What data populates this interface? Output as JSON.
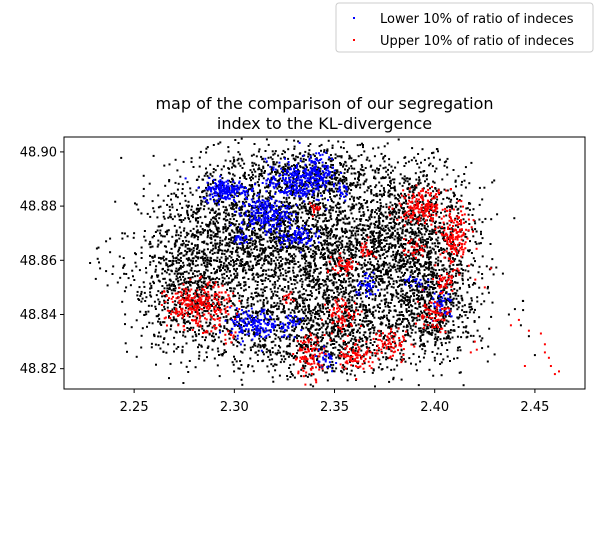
{
  "chart_data": {
    "type": "scatter",
    "title": [
      "map of the comparison of our segregation",
      "index to the KL-divergence"
    ],
    "xlabel": "",
    "ylabel": "",
    "xlim": [
      2.215,
      2.475
    ],
    "ylim": [
      48.8125,
      48.9055
    ],
    "xticks": [
      2.25,
      2.3,
      2.35,
      2.4,
      2.45
    ],
    "xtick_labels": [
      "2.25",
      "2.30",
      "2.35",
      "2.40",
      "2.45"
    ],
    "yticks": [
      48.82,
      48.84,
      48.86,
      48.88,
      48.9
    ],
    "ytick_labels": [
      "48.82",
      "48.84",
      "48.86",
      "48.88",
      "48.90"
    ],
    "grid": false,
    "legend_position": "top-right, outside above the plot",
    "background_series": {
      "color": "#000000",
      "description_points": "dense black points covering the city of Paris",
      "clusters": [
        {
          "x": 2.345,
          "y": 48.862,
          "sx": 0.03,
          "sy": 0.017,
          "n": 2600
        },
        {
          "x": 2.3,
          "y": 48.872,
          "sx": 0.02,
          "sy": 0.012,
          "n": 900
        },
        {
          "x": 2.39,
          "y": 48.87,
          "sx": 0.016,
          "sy": 0.014,
          "n": 900
        },
        {
          "x": 2.28,
          "y": 48.85,
          "sx": 0.016,
          "sy": 0.012,
          "n": 800
        },
        {
          "x": 2.345,
          "y": 48.832,
          "sx": 0.03,
          "sy": 0.008,
          "n": 900
        },
        {
          "x": 2.4,
          "y": 48.845,
          "sx": 0.01,
          "sy": 0.01,
          "n": 450
        },
        {
          "x": 2.335,
          "y": 48.892,
          "sx": 0.02,
          "sy": 0.005,
          "n": 450
        }
      ],
      "outliers": [
        [
          2.228,
          48.859
        ],
        [
          2.236,
          48.867
        ],
        [
          2.238,
          48.868
        ],
        [
          2.233,
          48.857
        ],
        [
          2.236,
          48.856
        ],
        [
          2.238,
          48.863
        ],
        [
          2.245,
          48.855
        ],
        [
          2.246,
          48.85
        ],
        [
          2.25,
          48.87
        ],
        [
          2.258,
          48.876
        ],
        [
          2.26,
          48.878
        ],
        [
          2.27,
          48.829
        ],
        [
          2.272,
          48.828
        ],
        [
          2.285,
          48.823
        ],
        [
          2.437,
          48.84
        ],
        [
          2.44,
          48.842
        ],
        [
          2.444,
          48.845
        ],
        [
          2.447,
          48.832
        ],
        [
          2.443,
          48.836
        ],
        [
          2.45,
          48.825
        ]
      ]
    },
    "series": [
      {
        "name": "Lower 10% of ratio of indeces",
        "color": "#0000ff",
        "clusters": [
          {
            "x": 2.296,
            "y": 48.886,
            "sx": 0.006,
            "sy": 0.002,
            "n": 180
          },
          {
            "x": 2.315,
            "y": 48.877,
            "sx": 0.006,
            "sy": 0.003,
            "n": 200
          },
          {
            "x": 2.33,
            "y": 48.889,
            "sx": 0.007,
            "sy": 0.004,
            "n": 240
          },
          {
            "x": 2.343,
            "y": 48.893,
            "sx": 0.004,
            "sy": 0.003,
            "n": 110
          },
          {
            "x": 2.33,
            "y": 48.869,
            "sx": 0.005,
            "sy": 0.002,
            "n": 90
          },
          {
            "x": 2.303,
            "y": 48.868,
            "sx": 0.002,
            "sy": 0.001,
            "n": 25
          },
          {
            "x": 2.31,
            "y": 48.836,
            "sx": 0.006,
            "sy": 0.003,
            "n": 150
          },
          {
            "x": 2.329,
            "y": 48.837,
            "sx": 0.003,
            "sy": 0.002,
            "n": 35
          },
          {
            "x": 2.367,
            "y": 48.85,
            "sx": 0.003,
            "sy": 0.002,
            "n": 40
          },
          {
            "x": 2.404,
            "y": 48.843,
            "sx": 0.003,
            "sy": 0.003,
            "n": 35
          },
          {
            "x": 2.346,
            "y": 48.823,
            "sx": 0.003,
            "sy": 0.002,
            "n": 25
          },
          {
            "x": 2.354,
            "y": 48.885,
            "sx": 0.002,
            "sy": 0.002,
            "n": 20
          },
          {
            "x": 2.39,
            "y": 48.852,
            "sx": 0.003,
            "sy": 0.002,
            "n": 18
          }
        ]
      },
      {
        "name": "Upper 10% of ratio of indeces",
        "color": "#ff0000",
        "clusters": [
          {
            "x": 2.394,
            "y": 48.88,
            "sx": 0.006,
            "sy": 0.003,
            "n": 180
          },
          {
            "x": 2.41,
            "y": 48.868,
            "sx": 0.004,
            "sy": 0.005,
            "n": 150
          },
          {
            "x": 2.39,
            "y": 48.864,
            "sx": 0.003,
            "sy": 0.002,
            "n": 30
          },
          {
            "x": 2.366,
            "y": 48.864,
            "sx": 0.002,
            "sy": 0.002,
            "n": 25
          },
          {
            "x": 2.355,
            "y": 48.858,
            "sx": 0.003,
            "sy": 0.002,
            "n": 45
          },
          {
            "x": 2.34,
            "y": 48.879,
            "sx": 0.002,
            "sy": 0.001,
            "n": 15
          },
          {
            "x": 2.282,
            "y": 48.843,
            "sx": 0.008,
            "sy": 0.004,
            "n": 270
          },
          {
            "x": 2.354,
            "y": 48.84,
            "sx": 0.004,
            "sy": 0.003,
            "n": 70
          },
          {
            "x": 2.338,
            "y": 48.825,
            "sx": 0.004,
            "sy": 0.004,
            "n": 90
          },
          {
            "x": 2.36,
            "y": 48.825,
            "sx": 0.004,
            "sy": 0.003,
            "n": 80
          },
          {
            "x": 2.378,
            "y": 48.829,
            "sx": 0.005,
            "sy": 0.003,
            "n": 75
          },
          {
            "x": 2.399,
            "y": 48.84,
            "sx": 0.004,
            "sy": 0.003,
            "n": 70
          },
          {
            "x": 2.405,
            "y": 48.852,
            "sx": 0.003,
            "sy": 0.002,
            "n": 40
          },
          {
            "x": 2.327,
            "y": 48.846,
            "sx": 0.002,
            "sy": 0.001,
            "n": 12
          },
          {
            "x": 2.298,
            "y": 48.832,
            "sx": 0.002,
            "sy": 0.002,
            "n": 10
          }
        ],
        "outliers": [
          [
            2.42,
            48.83
          ],
          [
            2.421,
            48.827
          ],
          [
            2.418,
            48.826
          ],
          [
            2.438,
            48.836
          ],
          [
            2.442,
            48.838
          ],
          [
            2.447,
            48.834
          ],
          [
            2.453,
            48.833
          ],
          [
            2.455,
            48.829
          ],
          [
            2.455,
            48.826
          ],
          [
            2.457,
            48.824
          ],
          [
            2.458,
            48.821
          ],
          [
            2.46,
            48.818
          ],
          [
            2.462,
            48.819
          ],
          [
            2.445,
            48.821
          ],
          [
            2.272,
            48.836
          ],
          [
            2.428,
            48.857
          ],
          [
            2.425,
            48.85
          ],
          [
            2.417,
            48.858
          ]
        ]
      }
    ]
  }
}
